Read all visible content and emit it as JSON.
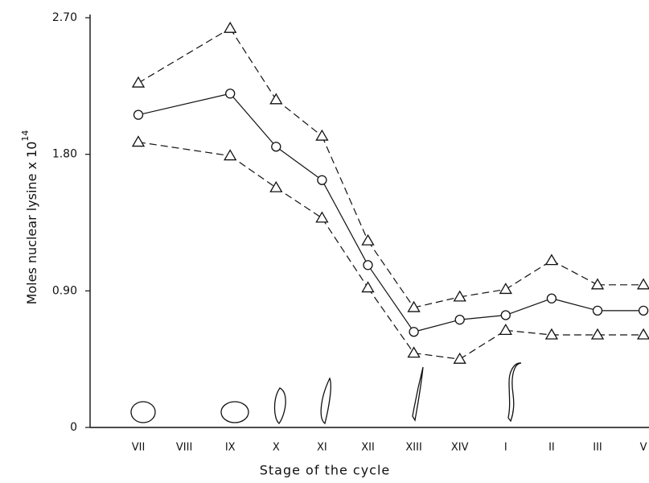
{
  "chart_data": {
    "type": "line",
    "ylabel": "Moles nuclear lysine x 10",
    "ylabel_exponent": "14",
    "xlabel": "Stage of the cycle",
    "categories": [
      "VII",
      "VIII",
      "IX",
      "X",
      "XI",
      "XII",
      "XIII",
      "XIV",
      "I",
      "II",
      "III",
      "V"
    ],
    "ylim": [
      0,
      2.7
    ],
    "yticks": [
      0,
      {
        "value": 0.9,
        "label": "0.90"
      },
      {
        "value": 1.8,
        "label": "1.80"
      },
      {
        "value": 2.7,
        "label": "2.70"
      }
    ],
    "series": [
      {
        "color": "#111111",
        "line_style": "dashed",
        "marker": "triangle",
        "values": [
          2.27,
          null,
          2.63,
          2.16,
          1.92,
          1.23,
          0.79,
          0.86,
          0.91,
          1.1,
          0.94,
          0.94
        ]
      },
      {
        "color": "#111111",
        "line_style": "solid",
        "marker": "circle",
        "values": [
          2.06,
          null,
          2.2,
          1.85,
          1.63,
          1.07,
          0.63,
          0.71,
          0.74,
          0.85,
          0.77,
          0.77
        ]
      },
      {
        "color": "#111111",
        "line_style": "dashed",
        "marker": "triangle",
        "values": [
          1.88,
          null,
          1.79,
          1.58,
          1.38,
          0.92,
          0.49,
          0.45,
          0.64,
          0.61,
          0.61,
          0.61
        ]
      }
    ]
  }
}
